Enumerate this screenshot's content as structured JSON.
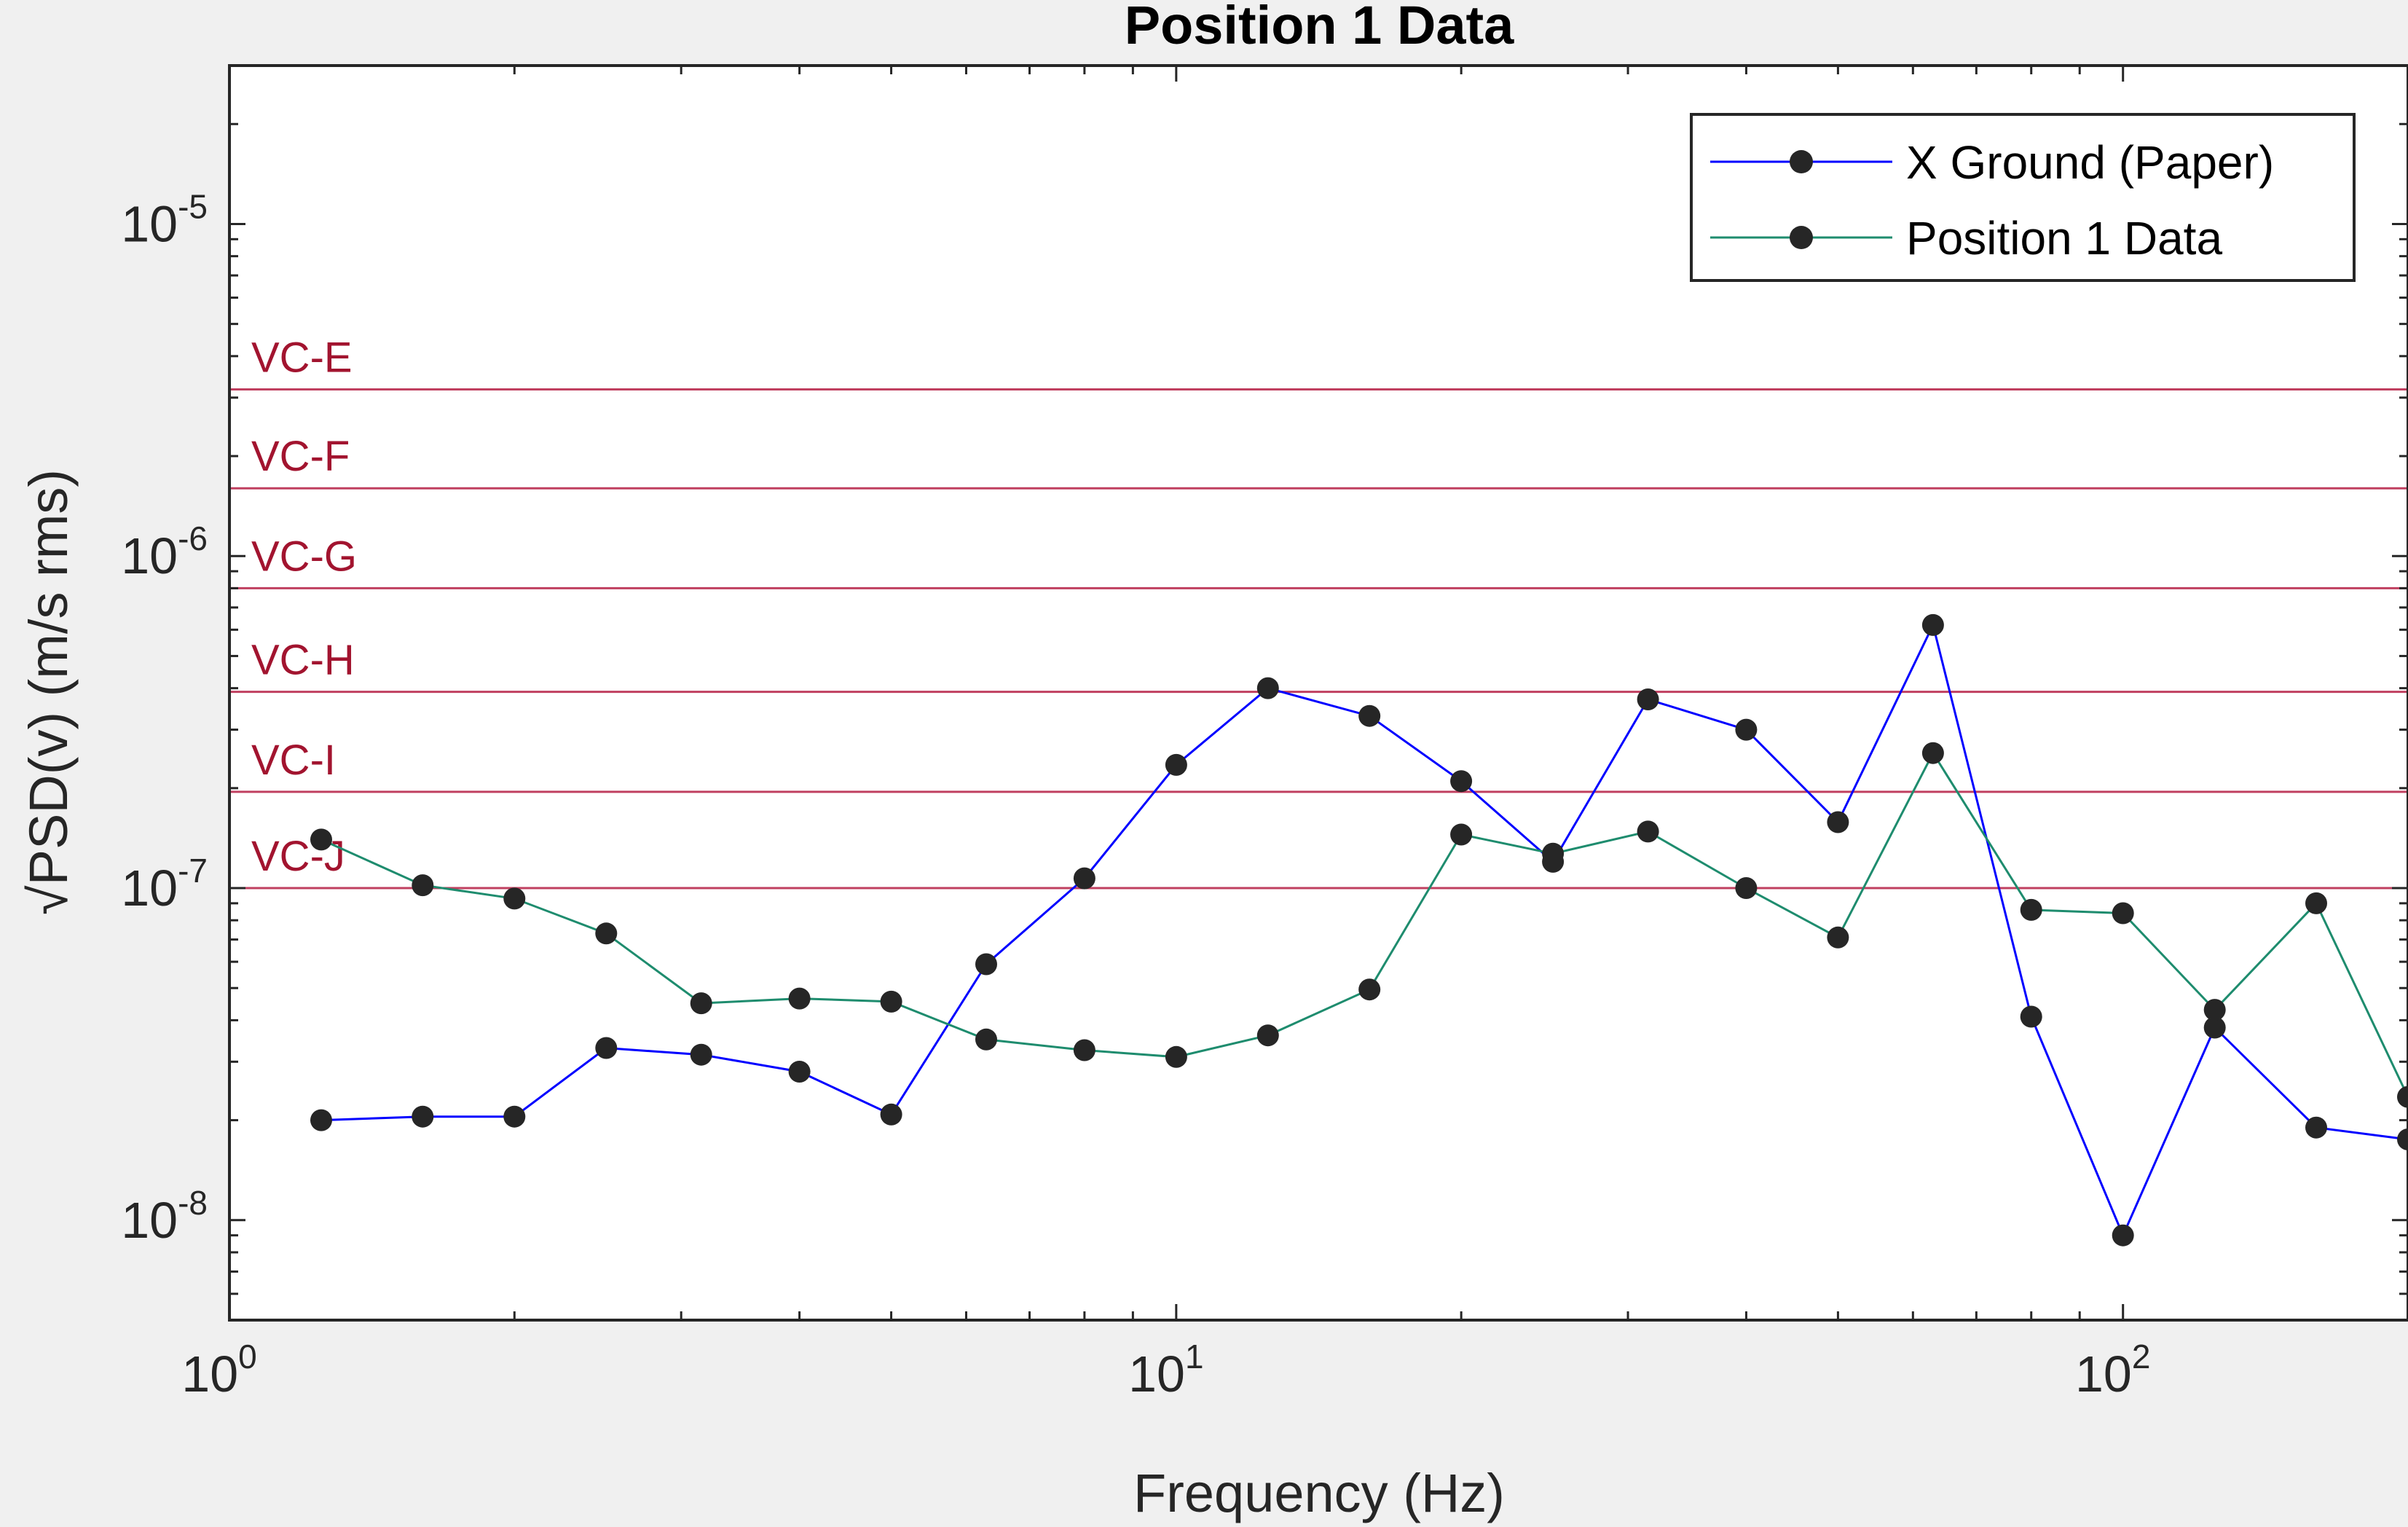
{
  "chart_data": {
    "type": "line",
    "title": "Position 1 Data",
    "xlabel": "Frequency (Hz)",
    "ylabel": "√PSD(v) (m/s rms)",
    "xscale": "log",
    "yscale": "log",
    "xlim": [
      1,
      200
    ],
    "ylim": [
      5e-09,
      3e-05
    ],
    "x_ticks": [
      {
        "base": "10",
        "exp": "0",
        "value": 1
      },
      {
        "base": "10",
        "exp": "1",
        "value": 10
      },
      {
        "base": "10",
        "exp": "2",
        "value": 100
      }
    ],
    "y_ticks": [
      {
        "base": "10",
        "exp": "-8",
        "value": 1e-08
      },
      {
        "base": "10",
        "exp": "-7",
        "value": 1e-07
      },
      {
        "base": "10",
        "exp": "-6",
        "value": 1e-06
      },
      {
        "base": "10",
        "exp": "-5",
        "value": 1e-05
      }
    ],
    "grid": false,
    "legend_position": "top-right",
    "x": [
      1.25,
      1.6,
      2,
      2.5,
      3.15,
      4,
      5,
      6.3,
      8,
      10,
      12.5,
      16,
      20,
      25,
      31.5,
      40,
      50,
      63,
      80,
      100,
      125,
      160,
      200
    ],
    "series": [
      {
        "name": "X Ground (Paper)",
        "color": "#0000ff",
        "values": [
          2e-08,
          2.05e-08,
          2.05e-08,
          3.3e-08,
          3.15e-08,
          2.8e-08,
          2.08e-08,
          5.9e-08,
          1.07e-07,
          2.35e-07,
          4e-07,
          3.3e-07,
          2.1e-07,
          1.2e-07,
          3.7e-07,
          3e-07,
          1.58e-07,
          6.2e-07,
          4.1e-08,
          9e-09,
          3.8e-08,
          1.9e-08,
          1.75e-08
        ]
      },
      {
        "name": "Position 1 Data",
        "color": "#1e8c6e",
        "values": [
          1.4e-07,
          1.02e-07,
          9.3e-08,
          7.3e-08,
          4.5e-08,
          4.65e-08,
          4.55e-08,
          3.5e-08,
          3.25e-08,
          3.1e-08,
          3.6e-08,
          4.95e-08,
          1.45e-07,
          1.27e-07,
          1.48e-07,
          1e-07,
          7.1e-08,
          2.55e-07,
          8.6e-08,
          8.4e-08,
          4.3e-08,
          9e-08,
          2.35e-08
        ]
      }
    ],
    "marker_color": "#262626",
    "criterion_color": "#c04060",
    "criterion_label_color": "#a2142f",
    "criteria": [
      {
        "label": "VC-E",
        "value": 3.175e-06
      },
      {
        "label": "VC-F",
        "value": 1.6e-06
      },
      {
        "label": "VC-G",
        "value": 8e-07
      },
      {
        "label": "VC-H",
        "value": 3.9e-07
      },
      {
        "label": "VC-I",
        "value": 1.95e-07
      },
      {
        "label": "VC-J",
        "value": 1e-07
      }
    ]
  }
}
